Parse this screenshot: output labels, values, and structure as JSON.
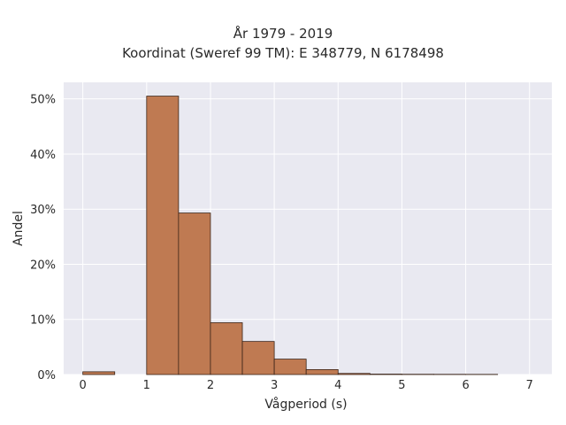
{
  "chart_data": {
    "type": "bar",
    "title_lines": [
      "År 1979 - 2019",
      "Koordinat (Sweref 99 TM): E 348779, N 6178498"
    ],
    "xlabel": "Vågperiod (s)",
    "ylabel": "Andel",
    "xlim": [
      -0.3,
      7.35
    ],
    "ylim": [
      0,
      0.53
    ],
    "x_ticks": [
      0,
      1,
      2,
      3,
      4,
      5,
      6,
      7
    ],
    "y_ticks": [
      0,
      0.1,
      0.2,
      0.3,
      0.4,
      0.5
    ],
    "y_tick_labels": [
      "0%",
      "10%",
      "20%",
      "30%",
      "40%",
      "50%"
    ],
    "grid": true,
    "bin_width": 0.5,
    "bins": [
      {
        "start": 0.0,
        "value": 0.005
      },
      {
        "start": 1.0,
        "value": 0.505
      },
      {
        "start": 1.5,
        "value": 0.293
      },
      {
        "start": 2.0,
        "value": 0.094
      },
      {
        "start": 2.5,
        "value": 0.06
      },
      {
        "start": 3.0,
        "value": 0.028
      },
      {
        "start": 3.5,
        "value": 0.009
      },
      {
        "start": 4.0,
        "value": 0.002
      },
      {
        "start": 4.5,
        "value": 0.0008
      },
      {
        "start": 5.0,
        "value": 0.0005
      },
      {
        "start": 5.5,
        "value": 0.0004
      },
      {
        "start": 6.0,
        "value": 0.0003
      }
    ],
    "colors": {
      "bar_fill": "#bf7a52",
      "bar_stroke": "#3b2418",
      "plot_bg": "#e9e9f1",
      "grid": "#ffffff",
      "text": "#2a2a2a"
    }
  }
}
